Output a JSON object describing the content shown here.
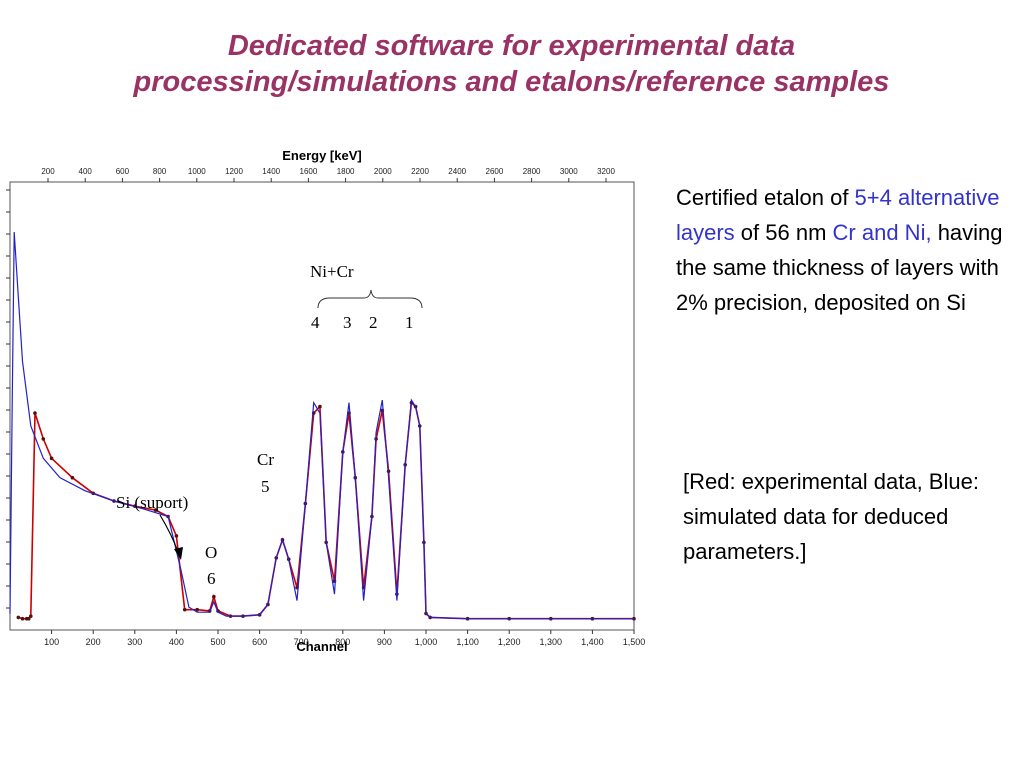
{
  "slide": {
    "title_line1": "Dedicated software for experimental data",
    "title_line2": "processing/simulations and etalons/reference samples",
    "title_color": "#993366"
  },
  "description": {
    "p1": "Certified etalon of ",
    "p2": "5+4 alternative layers",
    "p3": " of 56 nm ",
    "p4": "Cr and Ni,",
    "p5": " having the same thickness of layers with 2% precision, deposited on Si",
    "highlight_color": "#3333cc"
  },
  "legend_note": " [Red: experimental data, Blue: simulated data for deduced parameters.]",
  "chart_data": {
    "type": "line",
    "xlabel": "Channel",
    "x2label": "Energy [keV]",
    "xlim": [
      0,
      1500
    ],
    "x_ticks": [
      100,
      200,
      300,
      400,
      500,
      600,
      700,
      800,
      900,
      1000,
      1100,
      1200,
      1300,
      1400,
      1500
    ],
    "x_tick_labels": [
      "100",
      "200",
      "300",
      "400",
      "500",
      "600",
      "700",
      "800",
      "900",
      "1,000",
      "1,100",
      "1,200",
      "1,300",
      "1,400",
      "1,500"
    ],
    "energy_ticks": [
      "200",
      "400",
      "600",
      "800",
      "1000",
      "1200",
      "1400",
      "1600",
      "1800",
      "2000",
      "2200",
      "2400",
      "2600",
      "2800",
      "3000",
      "3200"
    ],
    "series": [
      {
        "name": "experimental",
        "color": "#cc0000",
        "x": [
          20,
          30,
          40,
          45,
          50,
          60,
          80,
          100,
          150,
          200,
          250,
          300,
          350,
          380,
          400,
          420,
          450,
          480,
          490,
          500,
          530,
          560,
          600,
          620,
          640,
          655,
          670,
          690,
          710,
          730,
          745,
          760,
          780,
          800,
          815,
          830,
          850,
          870,
          880,
          895,
          910,
          930,
          950,
          965,
          975,
          985,
          995,
          1000,
          1010,
          1100,
          1200,
          1300,
          1400,
          1500
        ],
        "y": [
          2,
          1,
          1,
          1,
          3,
          160,
          140,
          125,
          110,
          98,
          92,
          88,
          85,
          80,
          65,
          8,
          8,
          7,
          18,
          7,
          3,
          3,
          4,
          12,
          48,
          62,
          47,
          25,
          90,
          160,
          165,
          60,
          30,
          130,
          160,
          110,
          25,
          80,
          140,
          162,
          115,
          20,
          120,
          168,
          165,
          150,
          60,
          5,
          2,
          1,
          1,
          1,
          1,
          1
        ]
      },
      {
        "name": "simulated",
        "color": "#2222cc",
        "x": [
          0,
          5,
          10,
          20,
          30,
          50,
          80,
          120,
          180,
          250,
          320,
          380,
          410,
          430,
          450,
          480,
          490,
          500,
          520,
          560,
          600,
          620,
          640,
          655,
          670,
          690,
          710,
          730,
          745,
          760,
          780,
          800,
          815,
          830,
          850,
          870,
          880,
          895,
          910,
          930,
          950,
          965,
          975,
          985,
          995,
          1000,
          1010,
          1100,
          1200,
          1300,
          1400,
          1500
        ],
        "y": [
          5,
          160,
          300,
          250,
          200,
          150,
          125,
          110,
          100,
          92,
          86,
          80,
          40,
          10,
          6,
          6,
          14,
          6,
          3,
          3,
          4,
          12,
          48,
          62,
          47,
          15,
          90,
          168,
          160,
          60,
          20,
          130,
          168,
          110,
          15,
          80,
          145,
          170,
          110,
          15,
          120,
          170,
          165,
          150,
          60,
          5,
          2,
          1,
          1,
          1,
          1,
          1
        ]
      }
    ],
    "annotations": [
      "Ni+Cr",
      "4",
      "3",
      "2",
      "1",
      "Cr",
      "5",
      "Si (suport)",
      "O",
      "6"
    ]
  }
}
